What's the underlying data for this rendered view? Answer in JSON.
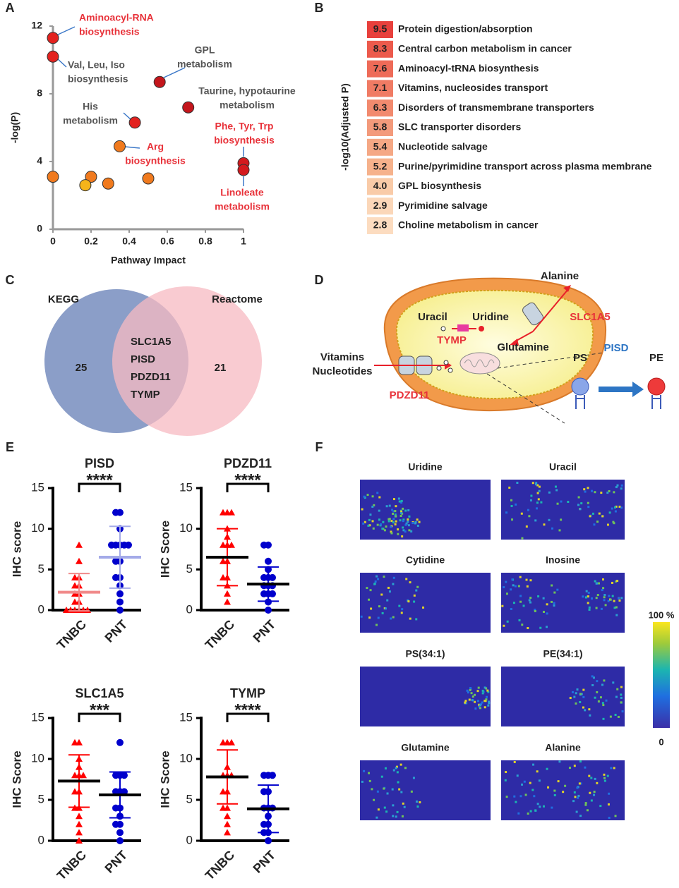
{
  "panels": [
    "A",
    "B",
    "C",
    "D",
    "E",
    "F"
  ],
  "chart_data": [
    {
      "type": "scatter",
      "xlabel": "Pathway Impact",
      "ylabel": "-log(P)",
      "xlim": [
        0,
        1
      ],
      "ylim": [
        0,
        12
      ],
      "xticks": [
        0,
        0.2,
        0.4,
        0.6,
        0.8,
        1
      ],
      "yticks": [
        0,
        4,
        8,
        12
      ],
      "x": [
        0,
        0,
        0.56,
        0.71,
        0.43,
        0.35,
        1,
        1,
        0,
        0.2,
        0.17,
        0.29,
        0.5
      ],
      "y": [
        11.3,
        10.2,
        8.7,
        7.2,
        6.3,
        4.9,
        3.9,
        3.5,
        3.1,
        3.1,
        2.6,
        2.7,
        3.0
      ],
      "colors": [
        "#e3221f",
        "#e3221f",
        "#c4161c",
        "#c4161c",
        "#e3221f",
        "#f07a1e",
        "#d41a1e",
        "#d41a1e",
        "#f07a1e",
        "#f07a1e",
        "#f5b41a",
        "#f07a1e",
        "#f07a1e"
      ],
      "annotations": [
        {
          "lines": [
            "Aminoacyl-RNA",
            "biosynthesis"
          ],
          "color": "#e8323a"
        },
        {
          "lines": [
            "Val, Leu, Iso",
            "biosynthesis"
          ],
          "color": "#555555"
        },
        {
          "lines": [
            "GPL",
            "metabolism"
          ],
          "color": "#555555"
        },
        {
          "lines": [
            "Taurine, hypotaurine",
            "metabolism"
          ],
          "color": "#555555"
        },
        {
          "lines": [
            "His",
            "metabolism"
          ],
          "color": "#555555"
        },
        {
          "lines": [
            "Arg",
            "biosynthesis"
          ],
          "color": "#e8323a"
        },
        {
          "lines": [
            "Phe, Tyr, Trp",
            "biosynthesis"
          ],
          "color": "#e8323a"
        },
        {
          "lines": [
            "Linoleate",
            "metabolism"
          ],
          "color": "#e8323a"
        }
      ]
    },
    {
      "type": "heatmap",
      "ylabel": "-log10(Adjusted P)",
      "categories": [
        "Protein digestion/absorption",
        "Central carbon metabolism in cancer",
        "Aminoacyl-tRNA biosynthesis",
        "Vitamins, nucleosides transport",
        "Disorders of transmembrane transporters",
        "SLC transporter disorders",
        "Nucleotide salvage",
        "Purine/pyrimidine transport across plasma membrane",
        "GPL biosynthesis",
        "Pyrimidine salvage",
        "Choline metabolism in cancer"
      ],
      "values": [
        9.5,
        8.3,
        7.6,
        7.1,
        6.3,
        5.8,
        5.4,
        5.2,
        4.0,
        2.9,
        2.8
      ],
      "value_labels": [
        "9.5",
        "8.3",
        "7.6",
        "7.1",
        "6.3",
        "5.8",
        "5.4",
        "5.2",
        "4.0",
        "2.9",
        "2.8"
      ],
      "colors": [
        "#e8403c",
        "#ec5a4c",
        "#ee6b58",
        "#f07b64",
        "#f28a6e",
        "#f39a7b",
        "#f5a885",
        "#f6b28c",
        "#f9cba8",
        "#fbd7b9",
        "#fcdcc0"
      ]
    },
    {
      "type": "strip",
      "title": "PISD",
      "ylabel": "IHC score",
      "categories": [
        "TNBC",
        "PNT"
      ],
      "ylim": [
        0,
        15
      ],
      "yticks": [
        0,
        5,
        10,
        15
      ],
      "significance": "****",
      "colors": [
        "#ff0000",
        "#0000cc"
      ],
      "markers": [
        "triangle",
        "circle"
      ],
      "summary_colors": [
        "#f08a8a",
        "#a4aae8"
      ],
      "mean": [
        2.2,
        6.5
      ],
      "sd": [
        2.3,
        3.8
      ],
      "points": [
        [
          0,
          0,
          0,
          0,
          0,
          0,
          1,
          1,
          2,
          2,
          3,
          3,
          4,
          4,
          6,
          8
        ],
        [
          0,
          1,
          2,
          3,
          4,
          4,
          6,
          6,
          8,
          8,
          8,
          8,
          8,
          10,
          12,
          12
        ]
      ]
    },
    {
      "type": "strip",
      "title": "PDZD11",
      "ylabel": "IHC  Score",
      "categories": [
        "TNBC",
        "PNT"
      ],
      "ylim": [
        0,
        15
      ],
      "yticks": [
        0,
        5,
        10,
        15
      ],
      "significance": "****",
      "colors": [
        "#ff0000",
        "#0000cc"
      ],
      "markers": [
        "triangle",
        "circle"
      ],
      "summary_colors": [
        "#000000",
        "#000000"
      ],
      "mean": [
        6.5,
        3.2
      ],
      "sd": [
        3.5,
        2.1
      ],
      "points": [
        [
          1,
          2,
          3,
          4,
          4,
          6,
          6,
          8,
          8,
          8,
          9,
          10,
          12,
          12,
          12
        ],
        [
          0,
          1,
          2,
          2,
          2,
          3,
          3,
          3,
          4,
          4,
          4,
          5,
          6,
          8,
          8
        ]
      ]
    },
    {
      "type": "strip",
      "title": "SLC1A5",
      "ylabel": "IHC  Score",
      "categories": [
        "TNBC",
        "PNT"
      ],
      "ylim": [
        0,
        15
      ],
      "yticks": [
        0,
        5,
        10,
        15
      ],
      "significance": "***",
      "colors": [
        "#ff0000",
        "#0000cc"
      ],
      "markers": [
        "triangle",
        "circle"
      ],
      "summary_colors": [
        "#000000",
        "#000000"
      ],
      "mean": [
        7.3,
        5.6
      ],
      "sd": [
        3.2,
        2.8
      ],
      "points": [
        [
          0,
          1,
          2,
          3,
          4,
          4,
          6,
          6,
          8,
          8,
          8,
          9,
          10,
          12,
          12
        ],
        [
          0,
          1,
          2,
          2,
          3,
          4,
          4,
          6,
          6,
          6,
          8,
          8,
          8,
          12
        ]
      ]
    },
    {
      "type": "strip",
      "title": "TYMP",
      "ylabel": "IHC Score",
      "categories": [
        "TNBC",
        "PNT"
      ],
      "ylim": [
        0,
        15
      ],
      "yticks": [
        0,
        5,
        10,
        15
      ],
      "significance": "****",
      "colors": [
        "#ff0000",
        "#0000cc"
      ],
      "markers": [
        "triangle",
        "circle"
      ],
      "summary_colors": [
        "#000000",
        "#000000"
      ],
      "mean": [
        7.8,
        3.9
      ],
      "sd": [
        3.3,
        2.9
      ],
      "points": [
        [
          1,
          2,
          3,
          4,
          4,
          6,
          6,
          8,
          8,
          8,
          9,
          12,
          12,
          12
        ],
        [
          0,
          1,
          1,
          2,
          2,
          3,
          4,
          4,
          4,
          6,
          6,
          8,
          8,
          8
        ]
      ]
    }
  ],
  "venn": {
    "sets": [
      "KEGG",
      "Reactome"
    ],
    "counts": [
      25,
      21
    ],
    "shared": [
      "SLC1A5",
      "PISD",
      "PDZD11",
      "TYMP"
    ]
  },
  "diagram": {
    "alanine": "Alanine",
    "slc1a5": "SLC1A5",
    "uracil": "Uracil",
    "uridine": "Uridine",
    "tymp": "TYMP",
    "glutamine": "Glutamine",
    "vitamins": "Vitamins",
    "nucleotides": "Nucleotides",
    "pdzd11": "PDZD11",
    "ps": "PS",
    "pisd": "PISD",
    "pe": "PE"
  },
  "imaging": {
    "titles": [
      "Uridine",
      "Uracil",
      "Cytidine",
      "Inosine",
      "PS(34:1)",
      "PE(34:1)",
      "Glutamine",
      "Alanine"
    ],
    "colorbar_labels": [
      "100 %",
      "0"
    ]
  }
}
